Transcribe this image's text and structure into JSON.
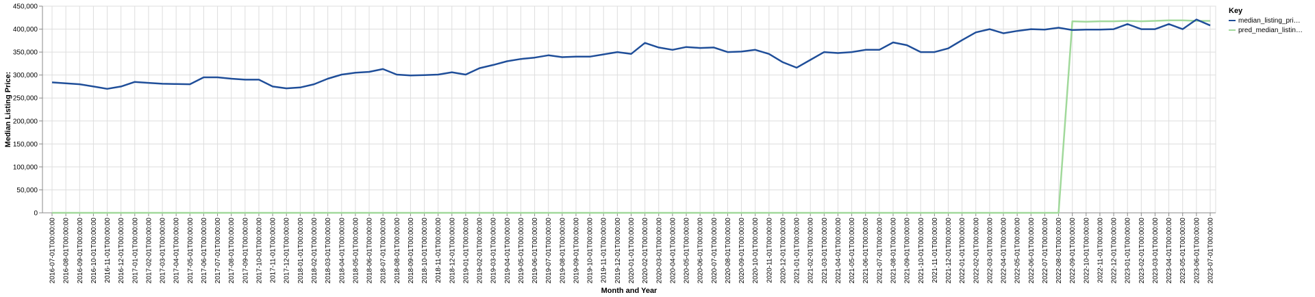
{
  "chart_data": {
    "type": "line",
    "xlabel": "Month and Year",
    "ylabel": "Median Listing Price:",
    "ylim": [
      0,
      450000
    ],
    "yticks": [
      "0",
      "50,000",
      "100,000",
      "150,000",
      "200,000",
      "250,000",
      "300,000",
      "350,000",
      "400,000",
      "450,000"
    ],
    "grid": true,
    "legend": {
      "title": "Key",
      "placement": "top-right",
      "items": [
        {
          "label": "median_listing_pri…",
          "color": "#1f4e99"
        },
        {
          "label": "pred_median_listin…",
          "color": "#a1d99b"
        }
      ]
    },
    "x": [
      "2016-07-01T00:00:00",
      "2016-08-01T00:00:00",
      "2016-09-01T00:00:00",
      "2016-10-01T00:00:00",
      "2016-11-01T00:00:00",
      "2016-12-01T00:00:00",
      "2017-01-01T00:00:00",
      "2017-02-01T00:00:00",
      "2017-03-01T00:00:00",
      "2017-04-01T00:00:00",
      "2017-05-01T00:00:00",
      "2017-06-01T00:00:00",
      "2017-07-01T00:00:00",
      "2017-08-01T00:00:00",
      "2017-09-01T00:00:00",
      "2017-10-01T00:00:00",
      "2017-11-01T00:00:00",
      "2017-12-01T00:00:00",
      "2018-01-01T00:00:00",
      "2018-02-01T00:00:00",
      "2018-03-01T00:00:00",
      "2018-04-01T00:00:00",
      "2018-05-01T00:00:00",
      "2018-06-01T00:00:00",
      "2018-07-01T00:00:00",
      "2018-08-01T00:00:00",
      "2018-09-01T00:00:00",
      "2018-10-01T00:00:00",
      "2018-11-01T00:00:00",
      "2018-12-01T00:00:00",
      "2019-01-01T00:00:00",
      "2019-02-01T00:00:00",
      "2019-03-01T00:00:00",
      "2019-04-01T00:00:00",
      "2019-05-01T00:00:00",
      "2019-06-01T00:00:00",
      "2019-07-01T00:00:00",
      "2019-08-01T00:00:00",
      "2019-09-01T00:00:00",
      "2019-10-01T00:00:00",
      "2019-11-01T00:00:00",
      "2019-12-01T00:00:00",
      "2020-01-01T00:00:00",
      "2020-02-01T00:00:00",
      "2020-03-01T00:00:00",
      "2020-04-01T00:00:00",
      "2020-05-01T00:00:00",
      "2020-06-01T00:00:00",
      "2020-07-01T00:00:00",
      "2020-08-01T00:00:00",
      "2020-09-01T00:00:00",
      "2020-10-01T00:00:00",
      "2020-11-01T00:00:00",
      "2020-12-01T00:00:00",
      "2021-01-01T00:00:00",
      "2021-02-01T00:00:00",
      "2021-03-01T00:00:00",
      "2021-04-01T00:00:00",
      "2021-05-01T00:00:00",
      "2021-06-01T00:00:00",
      "2021-07-01T00:00:00",
      "2021-08-01T00:00:00",
      "2021-09-01T00:00:00",
      "2021-10-01T00:00:00",
      "2021-11-01T00:00:00",
      "2021-12-01T00:00:00",
      "2022-01-01T00:00:00",
      "2022-02-01T00:00:00",
      "2022-03-01T00:00:00",
      "2022-04-01T00:00:00",
      "2022-05-01T00:00:00",
      "2022-06-01T00:00:00",
      "2022-07-01T00:00:00",
      "2022-08-01T00:00:00",
      "2022-09-01T00:00:00",
      "2022-10-01T00:00:00",
      "2022-11-01T00:00:00",
      "2022-12-01T00:00:00",
      "2023-01-01T00:00:00",
      "2023-02-01T00:00:00",
      "2023-03-01T00:00:00",
      "2023-04-01T00:00:00",
      "2023-05-01T00:00:00",
      "2023-06-01T00:00:00",
      "2023-07-01T00:00:00"
    ],
    "series": [
      {
        "name": "median_listing_pri…",
        "color": "#1f4e99",
        "values": [
          284000,
          282000,
          280000,
          275000,
          270000,
          275000,
          285000,
          283000,
          281000,
          280500,
          280000,
          295000,
          295000,
          292000,
          290000,
          290000,
          275000,
          271000,
          273000,
          280000,
          292000,
          301000,
          305000,
          307000,
          313000,
          301000,
          299000,
          300000,
          301000,
          306000,
          301000,
          315000,
          322000,
          330000,
          335000,
          338000,
          343000,
          339000,
          340000,
          340000,
          345000,
          350000,
          346000,
          370000,
          360000,
          355000,
          361000,
          359000,
          360000,
          350000,
          351000,
          355000,
          346000,
          328000,
          316000,
          333000,
          350000,
          348000,
          350000,
          355000,
          355000,
          371000,
          365000,
          350000,
          350000,
          358000,
          376000,
          393000,
          400000,
          391000,
          396000,
          400000,
          399000,
          403000,
          398000,
          399000,
          399000,
          400000,
          411000,
          400000,
          400000,
          411000,
          400000,
          421000,
          408000
        ]
      },
      {
        "name": "pred_median_listin…",
        "color": "#a1d99b",
        "values": [
          0,
          0,
          0,
          0,
          0,
          0,
          0,
          0,
          0,
          0,
          0,
          0,
          0,
          0,
          0,
          0,
          0,
          0,
          0,
          0,
          0,
          0,
          0,
          0,
          0,
          0,
          0,
          0,
          0,
          0,
          0,
          0,
          0,
          0,
          0,
          0,
          0,
          0,
          0,
          0,
          0,
          0,
          0,
          0,
          0,
          0,
          0,
          0,
          0,
          0,
          0,
          0,
          0,
          0,
          0,
          0,
          0,
          0,
          0,
          0,
          0,
          0,
          0,
          0,
          0,
          0,
          0,
          0,
          0,
          0,
          0,
          0,
          0,
          0,
          417000,
          416000,
          417000,
          417000,
          418000,
          417000,
          418000,
          419000,
          419000,
          418000,
          418000
        ]
      }
    ]
  }
}
